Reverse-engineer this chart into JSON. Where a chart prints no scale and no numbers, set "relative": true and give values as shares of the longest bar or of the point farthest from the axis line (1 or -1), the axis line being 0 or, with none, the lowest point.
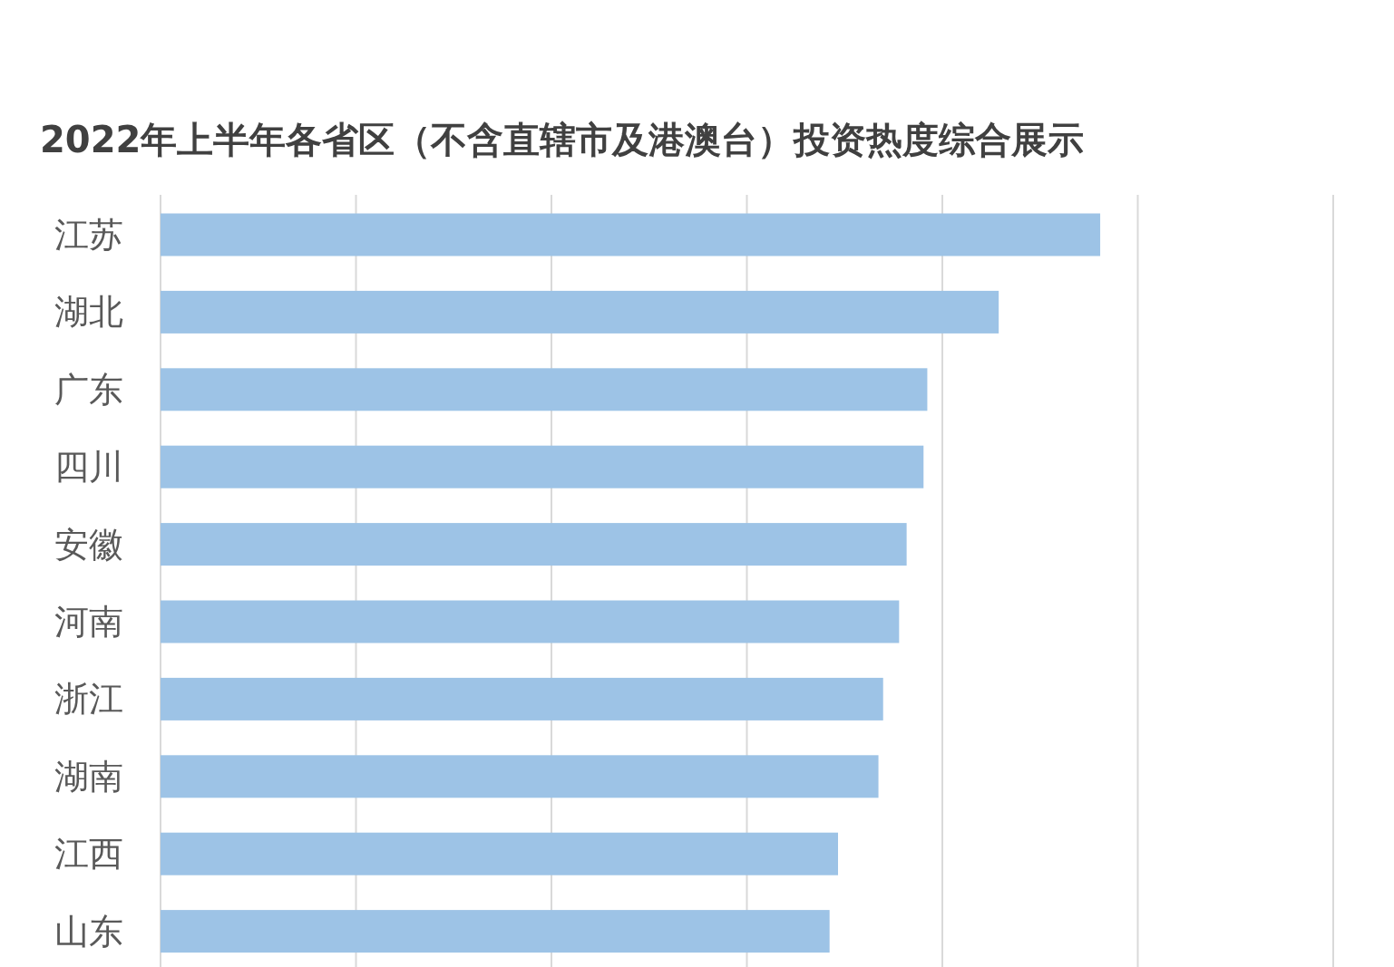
{
  "chart_data": {
    "type": "bar",
    "orientation": "horizontal",
    "relative": true,
    "title": "2022年上半年各省区（不含直辖市及港澳台）投资热度综合展示",
    "categories": [
      "江苏",
      "湖北",
      "广东",
      "四川",
      "安徽",
      "河南",
      "浙江",
      "湖南",
      "江西",
      "山东"
    ],
    "values": [
      1,
      0.892,
      0.816,
      0.812,
      0.794,
      0.786,
      0.769,
      0.764,
      0.721,
      0.712
    ],
    "color": "#9dc3e6",
    "grid": "x"
  }
}
